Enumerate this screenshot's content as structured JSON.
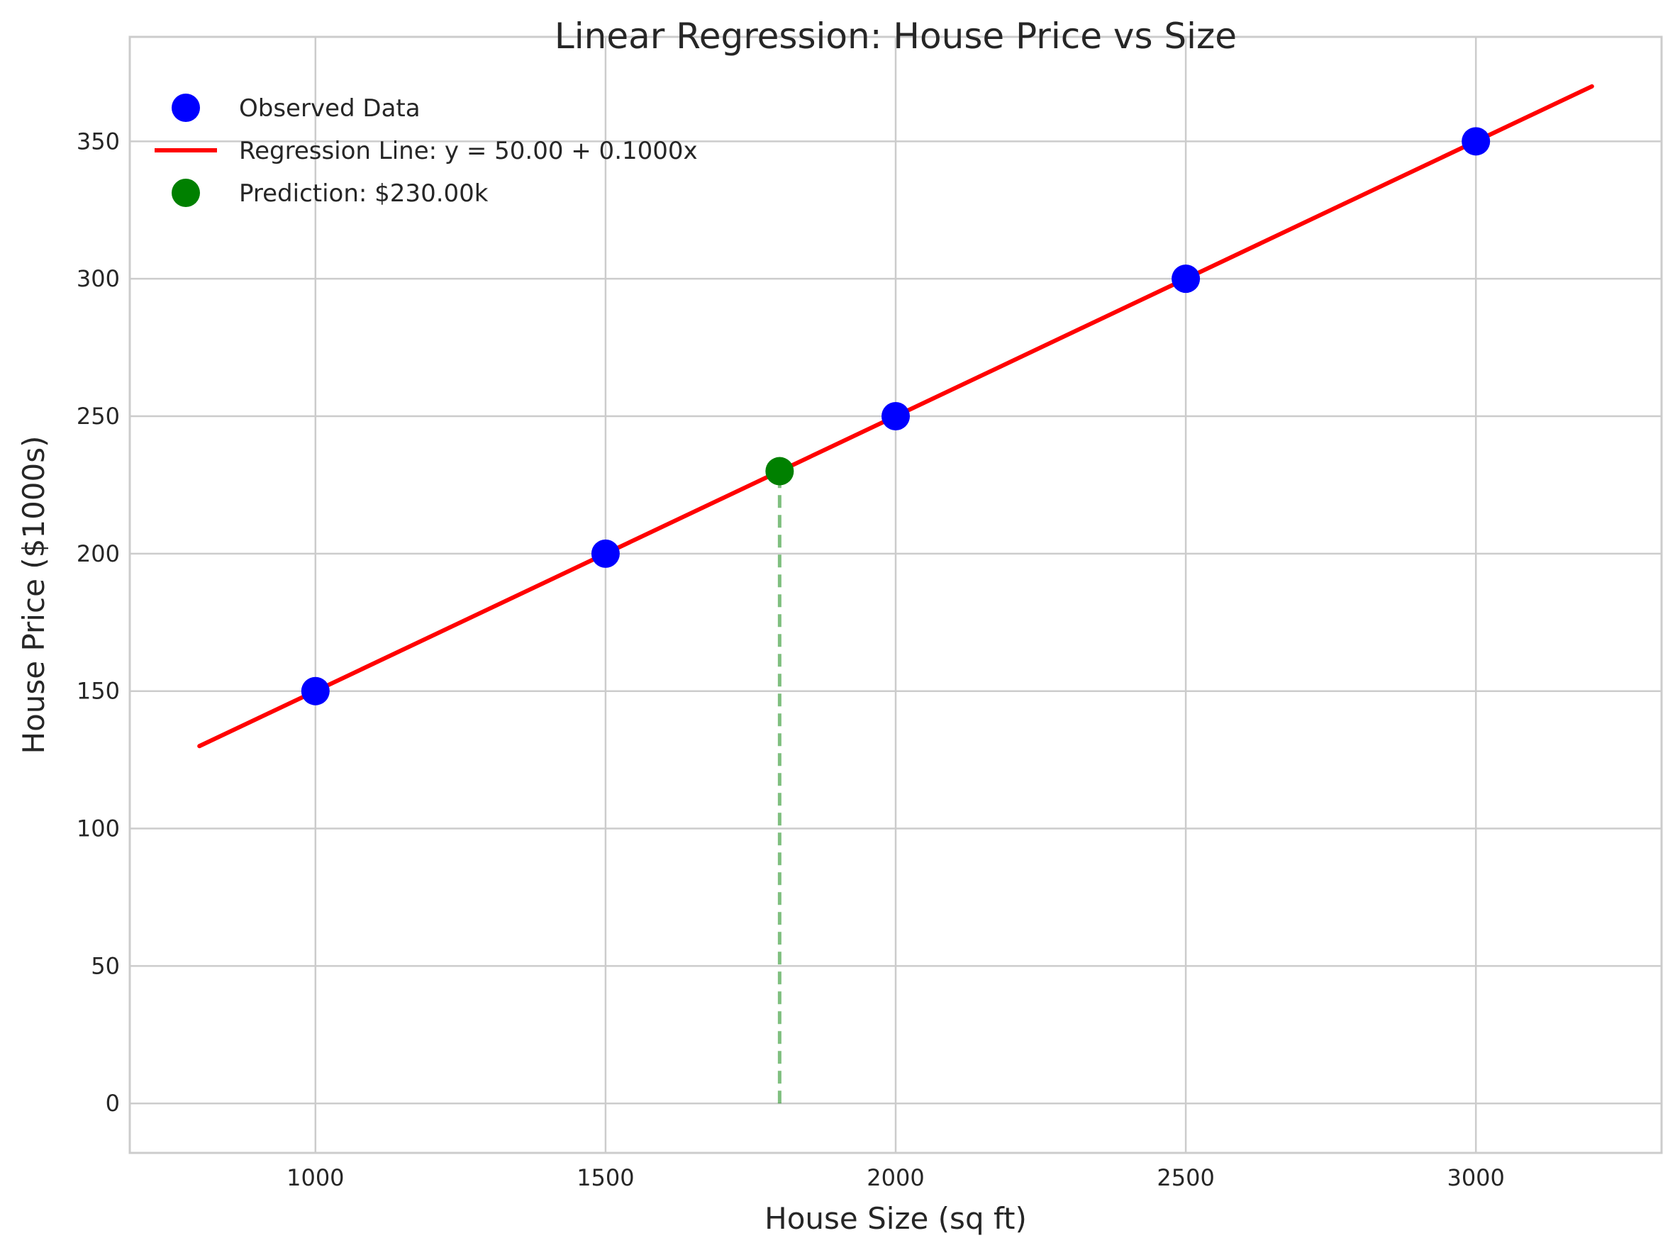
{
  "chart_data": {
    "type": "scatter",
    "title": "Linear Regression: House Price vs Size",
    "xlabel": "House Size (sq ft)",
    "ylabel": "House Price ($1000s)",
    "xlim": [
      680,
      3320
    ],
    "ylim": [
      -18,
      388
    ],
    "xticks": [
      1000,
      1500,
      2000,
      2500,
      3000
    ],
    "yticks": [
      0,
      50,
      100,
      150,
      200,
      250,
      300,
      350
    ],
    "grid": true,
    "legend_position": "top-left",
    "series": [
      {
        "name": "Observed Data",
        "kind": "scatter",
        "color": "#0000ff",
        "points": [
          {
            "x": 1000,
            "y": 150
          },
          {
            "x": 1500,
            "y": 200
          },
          {
            "x": 2000,
            "y": 250
          },
          {
            "x": 2500,
            "y": 300
          },
          {
            "x": 3000,
            "y": 350
          }
        ]
      },
      {
        "name": "Regression Line: y = 50.00 + 0.1000x",
        "kind": "line",
        "color": "#ff0000",
        "intercept": 50.0,
        "slope": 0.1,
        "x_range": [
          800,
          3200
        ]
      },
      {
        "name": "Prediction: $230.00k",
        "kind": "scatter",
        "color": "#008000",
        "points": [
          {
            "x": 1800,
            "y": 230
          }
        ]
      }
    ],
    "annotations": [
      {
        "kind": "vline-dashed",
        "x": 1800,
        "y_from": 0,
        "y_to": 230,
        "color": "#008000"
      }
    ]
  }
}
